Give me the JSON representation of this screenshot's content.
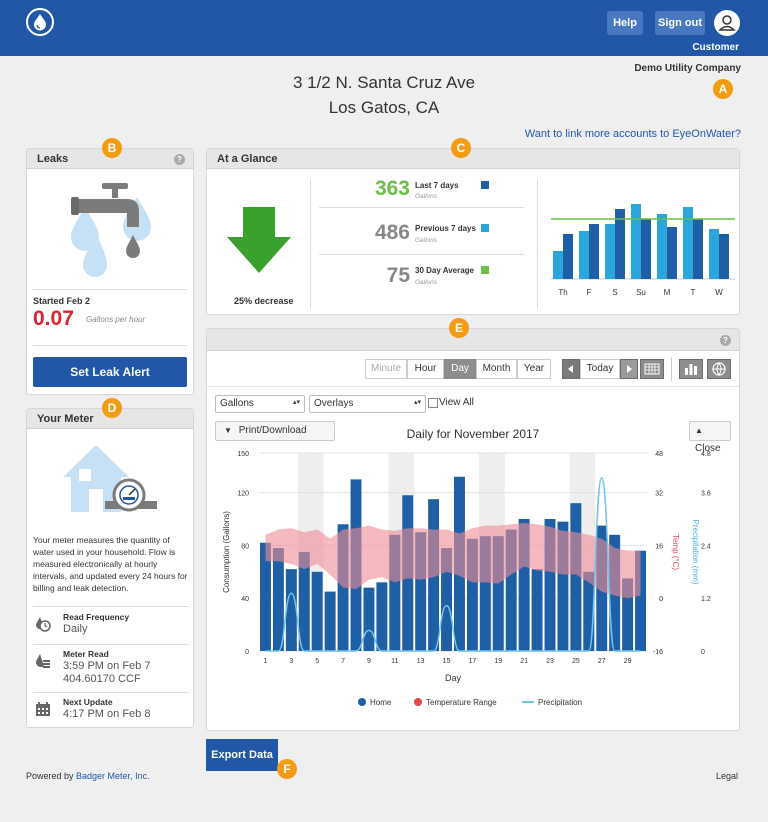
{
  "header": {
    "help_label": "Help",
    "signout_label": "Sign out",
    "customer_label": "Customer",
    "company": "Demo Utility Company"
  },
  "badges": [
    "A",
    "B",
    "C",
    "D",
    "E",
    "F"
  ],
  "address": {
    "line1": "3 1/2 N. Santa Cruz Ave",
    "line2": "Los Gatos, CA"
  },
  "link_accounts": "Want to link more accounts to EyeOnWater?",
  "leaks": {
    "title": "Leaks",
    "help": "?",
    "started": "Started Feb 2",
    "rate": "0.07",
    "rate_unit": "Gallons per hour",
    "button": "Set Leak Alert"
  },
  "meter": {
    "title": "Your Meter",
    "description": "Your meter measures the quantity of water used in your household. Flow is measured electronically at hourly intervals, and updated every 24 hours for billing and leak detection.",
    "rows": [
      {
        "label": "Read Frequency",
        "value": "Daily",
        "value2": ""
      },
      {
        "label": "Meter Read",
        "value": "3:59 PM on Feb 7",
        "value2": "404.60170 CCF"
      },
      {
        "label": "Next Update",
        "value": "4:17 PM on Feb 8",
        "value2": ""
      }
    ]
  },
  "glance": {
    "title": "At a Glance",
    "decrease": "25% decrease",
    "stats": [
      {
        "value": "363",
        "label": "Last 7 days",
        "unit": "Gallons",
        "color": "#6bbf45",
        "sq": "#1f5fa6"
      },
      {
        "value": "486",
        "label": "Previous 7 days",
        "unit": "Gallons",
        "color": "#888888",
        "sq": "#2aa6dd"
      },
      {
        "value": "75",
        "label": "30 Day Average",
        "unit": "Gallons",
        "color": "#888888",
        "sq": "#6bbf45"
      }
    ],
    "mini_chart": {
      "days": [
        "Th",
        "F",
        "S",
        "Su",
        "M",
        "T",
        "W"
      ],
      "previous": [
        28,
        48,
        55,
        75,
        65,
        72,
        50
      ],
      "last": [
        45,
        55,
        70,
        60,
        52,
        60,
        45
      ],
      "average": 60,
      "max": 80
    }
  },
  "controls": {
    "period_buttons": [
      "Minute",
      "Hour",
      "Day",
      "Month",
      "Year"
    ],
    "active_period": "Day",
    "today_label": "Today",
    "units_select": "Gallons",
    "overlays_select": "Overlays",
    "view_all": "View All",
    "print_label": "Print/Download",
    "close_label": "Close"
  },
  "chart_data": {
    "type": "bar",
    "title": "Daily for November 2017",
    "xlabel": "Day",
    "ylabel": "Consumption (Gallons)",
    "y2label": "Temp (°C)",
    "y3label": "Precipitation (mm)",
    "ylim": [
      0,
      150
    ],
    "y_ticks": [
      0,
      40,
      80,
      120,
      150
    ],
    "y2_ticks": [
      "-16",
      "0",
      "16",
      "32",
      "48"
    ],
    "y3_ticks": [
      "0",
      "1.2",
      "2.4",
      "3.6",
      "4.8"
    ],
    "x_ticks": [
      1,
      3,
      5,
      7,
      9,
      11,
      13,
      15,
      17,
      19,
      21,
      23,
      25,
      27,
      29
    ],
    "days": [
      1,
      2,
      3,
      4,
      5,
      6,
      7,
      8,
      9,
      10,
      11,
      12,
      13,
      14,
      15,
      16,
      17,
      18,
      19,
      20,
      21,
      22,
      23,
      24,
      25,
      26,
      27,
      28,
      29,
      30
    ],
    "weekend_days": [
      4,
      5,
      11,
      12,
      18,
      19,
      25,
      26
    ],
    "series": [
      {
        "name": "Home",
        "values": [
          82,
          78,
          62,
          75,
          60,
          45,
          96,
          130,
          48,
          52,
          88,
          118,
          90,
          115,
          78,
          132,
          85,
          87,
          87,
          92,
          100,
          62,
          100,
          98,
          112,
          60,
          95,
          88,
          55,
          76
        ]
      },
      {
        "name": "Temperature Range",
        "upper": [
          88,
          92,
          93,
          90,
          92,
          85,
          92,
          93,
          95,
          92,
          91,
          93,
          93,
          92,
          92,
          89,
          93,
          95,
          95,
          96,
          97,
          96,
          94,
          91,
          90,
          88,
          85,
          78,
          76,
          76
        ],
        "lower": [
          68,
          68,
          66,
          62,
          66,
          58,
          48,
          47,
          54,
          56,
          52,
          55,
          54,
          56,
          60,
          57,
          52,
          52,
          51,
          58,
          64,
          61,
          60,
          58,
          58,
          52,
          45,
          42,
          40,
          42
        ]
      },
      {
        "name": "Precipitation",
        "values": [
          0,
          0,
          1.4,
          0,
          0,
          0,
          0,
          0,
          0.5,
          0,
          0,
          0,
          0,
          0,
          1.1,
          0,
          0,
          0,
          0,
          0,
          0,
          0,
          0,
          0,
          0,
          0,
          4.2,
          0,
          0,
          0
        ]
      }
    ],
    "colors": {
      "home": "#1f5fa6",
      "temperature": "#ef8c95",
      "precipitation": "#6ec6ea"
    }
  },
  "export_label": "Export Data",
  "footer": {
    "powered_prefix": "Powered by ",
    "powered_link": "Badger Meter, Inc.",
    "legal": "Legal"
  }
}
